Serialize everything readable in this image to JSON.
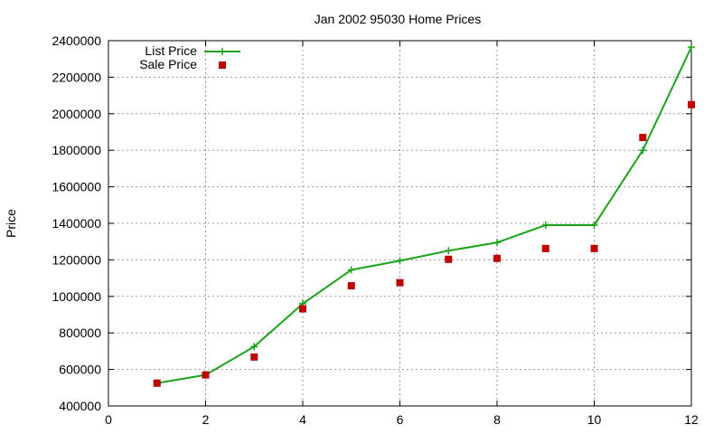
{
  "chart_data": {
    "type": "line",
    "title": "Jan 2002 95030 Home Prices",
    "xlabel": "",
    "ylabel": "Price",
    "xlim": [
      0,
      12
    ],
    "ylim": [
      400000,
      2400000
    ],
    "x_ticks": [
      0,
      2,
      4,
      6,
      8,
      10,
      12
    ],
    "y_ticks": [
      400000,
      600000,
      800000,
      1000000,
      1200000,
      1400000,
      1600000,
      1800000,
      2000000,
      2200000,
      2400000
    ],
    "x_tick_labels": [
      "0",
      "2",
      "4",
      "6",
      "8",
      "10",
      "12"
    ],
    "y_tick_labels": [
      "400000",
      "600000",
      "800000",
      "1000000",
      "1200000",
      "1400000",
      "1600000",
      "1800000",
      "2000000",
      "2200000",
      "2400000"
    ],
    "grid": true,
    "legend_position": "top-left",
    "series": [
      {
        "name": "List Price",
        "style": "line-with-plus-markers",
        "color": "#1aa31a",
        "x": [
          1,
          2,
          3,
          4,
          5,
          6,
          7,
          8,
          9,
          10,
          11,
          12
        ],
        "y": [
          525000,
          570000,
          725000,
          960000,
          1145000,
          1195000,
          1250000,
          1295000,
          1390000,
          1390000,
          1800000,
          2365000
        ]
      },
      {
        "name": "Sale Price",
        "style": "square-markers",
        "color": "#c00000",
        "x": [
          1,
          2,
          3,
          4,
          5,
          6,
          7,
          8,
          9,
          10,
          11,
          12
        ],
        "y": [
          525000,
          570000,
          668000,
          932000,
          1058000,
          1075000,
          1203000,
          1208000,
          1262000,
          1262000,
          1870000,
          2050000
        ]
      }
    ]
  }
}
